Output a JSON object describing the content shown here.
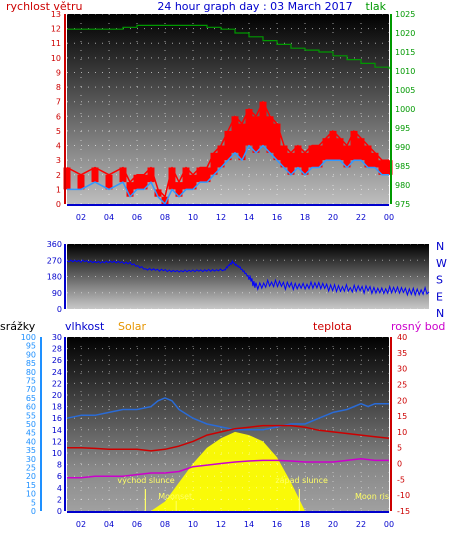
{
  "title": "24 hour graph day : 03 March 2017",
  "colors": {
    "wind": "#ff0000",
    "wind_avg": "#3399ff",
    "pressure": "#009900",
    "direction": "#0000ff",
    "humidity": "#0000ff",
    "rain": "#1e90ff",
    "solar": "#ffff00",
    "solar_label": "#e69500",
    "temperature": "#cc0000",
    "dewpoint": "#cc00cc",
    "sun_text": "#ffff66",
    "moon_text": "#ffff66"
  },
  "chart_data": [
    {
      "id": "wind_pressure",
      "type": "line",
      "left_label": "rychlost větru",
      "right_label": "tlak",
      "x_ticks": [
        "02",
        "04",
        "06",
        "08",
        "10",
        "12",
        "14",
        "16",
        "18",
        "20",
        "22",
        "00"
      ],
      "x_range": [
        1,
        24
      ],
      "y_left": {
        "min": 0,
        "max": 13,
        "ticks": [
          0,
          1,
          2,
          3,
          4,
          5,
          6,
          7,
          8,
          9,
          10,
          11,
          12,
          13
        ]
      },
      "y_right": {
        "min": 975,
        "max": 1025,
        "ticks": [
          975,
          980,
          985,
          990,
          995,
          1000,
          1005,
          1010,
          1015,
          1020,
          1025
        ]
      },
      "series": [
        {
          "key": "wind_gust",
          "axis": "left",
          "x": [
            1,
            2,
            3,
            4,
            5,
            5.5,
            6,
            6.5,
            7,
            7.5,
            8,
            8.5,
            9,
            9.5,
            10,
            10.5,
            11,
            11.5,
            12,
            12.5,
            13,
            13.5,
            14,
            14.5,
            15,
            15.5,
            16,
            16.5,
            17,
            17.5,
            18,
            18.5,
            19,
            19.5,
            20,
            20.5,
            21,
            21.5,
            22,
            22.5,
            23,
            23.5,
            24
          ],
          "values": [
            2.5,
            2,
            2.5,
            2,
            2.5,
            1.5,
            2,
            2,
            2.5,
            1,
            0.5,
            2.5,
            1.5,
            2.5,
            2,
            2.5,
            2.5,
            3.5,
            4,
            5,
            6,
            5.5,
            6.5,
            6,
            7,
            6,
            5.5,
            4,
            3.5,
            4,
            3.5,
            4,
            4,
            4.5,
            5,
            4.5,
            4,
            5,
            4.5,
            4,
            3.5,
            3,
            3
          ]
        },
        {
          "key": "wind_avg",
          "axis": "left",
          "x": [
            1,
            2,
            3,
            4,
            5,
            5.5,
            6,
            6.5,
            7,
            7.5,
            8,
            8.5,
            9,
            9.5,
            10,
            10.5,
            11,
            11.5,
            12,
            12.5,
            13,
            13.5,
            14,
            14.5,
            15,
            15.5,
            16,
            16.5,
            17,
            17.5,
            18,
            18.5,
            19,
            19.5,
            20,
            20.5,
            21,
            21.5,
            22,
            22.5,
            23,
            23.5,
            24
          ],
          "values": [
            1,
            1,
            1.5,
            1,
            1.5,
            0.5,
            1,
            1,
            1.5,
            0.5,
            0,
            1,
            0.5,
            1,
            1,
            1.5,
            1.5,
            2,
            2.5,
            3,
            3.5,
            3,
            4,
            3.5,
            4,
            3.5,
            3,
            2.5,
            2,
            2.5,
            2,
            2.5,
            2.5,
            3,
            3,
            3,
            2.5,
            3,
            3,
            2.5,
            2.5,
            2,
            2
          ]
        },
        {
          "key": "pressure",
          "axis": "right",
          "x": [
            1,
            2,
            3,
            4,
            5,
            6,
            7,
            8,
            9,
            10,
            11,
            12,
            13,
            14,
            15,
            16,
            17,
            18,
            19,
            20,
            21,
            22,
            23,
            24
          ],
          "values": [
            1021,
            1021,
            1021,
            1021,
            1021.5,
            1022,
            1022,
            1022,
            1022,
            1022,
            1021.5,
            1021,
            1020,
            1019,
            1018,
            1017,
            1016,
            1015.5,
            1015,
            1014,
            1013,
            1012,
            1011,
            1010.5
          ]
        }
      ]
    },
    {
      "id": "wind_direction",
      "type": "line",
      "x_range": [
        1,
        24
      ],
      "y": {
        "min": 0,
        "max": 360,
        "ticks": [
          0,
          90,
          180,
          270,
          360
        ]
      },
      "compass": [
        "N",
        "W",
        "S",
        "E",
        "N"
      ],
      "series": [
        {
          "key": "direction",
          "x": [
            1,
            2,
            3,
            4,
            5,
            6,
            7,
            8,
            9,
            10,
            11,
            11.5,
            12,
            12.5,
            13,
            14,
            15,
            16,
            17,
            18,
            19,
            20,
            21,
            22,
            23,
            24
          ],
          "values": [
            265,
            265,
            260,
            260,
            255,
            220,
            215,
            210,
            210,
            215,
            215,
            260,
            230,
            180,
            130,
            140,
            130,
            130,
            125,
            120,
            110,
            110,
            105,
            100,
            100,
            95
          ]
        }
      ]
    },
    {
      "id": "temperature_humidity",
      "type": "line",
      "labels": {
        "rain": "srážky",
        "humidity": "vlhkost",
        "solar": "Solar",
        "temperature": "teplota",
        "dewpoint": "rosný bod"
      },
      "x_range": [
        1,
        24
      ],
      "y_rain": {
        "min": 0,
        "max": 100,
        "ticks": [
          0,
          5,
          10,
          15,
          20,
          25,
          30,
          35,
          40,
          45,
          50,
          55,
          60,
          65,
          70,
          75,
          80,
          85,
          90,
          95,
          100
        ]
      },
      "y_humidity": {
        "min": 0,
        "max": 30,
        "ticks": [
          0,
          2,
          4,
          6,
          8,
          10,
          12,
          14,
          16,
          18,
          20,
          22,
          24,
          26,
          28,
          30
        ]
      },
      "y_temp": {
        "min": -15,
        "max": 40,
        "ticks": [
          -15,
          -10,
          -5,
          0,
          5,
          10,
          15,
          20,
          25,
          30,
          35,
          40
        ]
      },
      "sunrise_label": "východ slunce",
      "sunset_label": "západ slunce",
      "moonset_label": "Moonset",
      "moonrise_label": "Moon ris",
      "sunrise_x": 6.6,
      "sunset_x": 17.6,
      "moonset_x": 8.8,
      "moonrise_x": 23.5,
      "series": [
        {
          "key": "humidity",
          "axis": "humidity",
          "x": [
            1,
            2,
            3,
            4,
            5,
            6,
            7,
            7.5,
            8,
            8.5,
            9,
            10,
            11,
            12,
            13,
            14,
            15,
            16,
            17,
            18,
            19,
            20,
            21,
            22,
            22.5,
            23,
            24
          ],
          "values": [
            16,
            16.5,
            16.5,
            17,
            17.5,
            17.5,
            18,
            19,
            19.5,
            19,
            17.5,
            16,
            15,
            14.5,
            14,
            14,
            14,
            14.5,
            15,
            15,
            16,
            17,
            17.5,
            18.5,
            18,
            18.5,
            18.5
          ]
        },
        {
          "key": "temperature",
          "axis": "temp",
          "x": [
            1,
            2,
            3,
            4,
            5,
            6,
            7,
            8,
            9,
            10,
            11,
            12,
            13,
            14,
            15,
            16,
            17,
            18,
            19,
            20,
            21,
            22,
            23,
            24
          ],
          "values": [
            5,
            5,
            4.8,
            4.5,
            4.5,
            4.5,
            4,
            4.5,
            5.5,
            7,
            9,
            10,
            11,
            11.5,
            12,
            12,
            12,
            11.5,
            10.5,
            10,
            9.5,
            9,
            8.5,
            8
          ]
        },
        {
          "key": "dewpoint",
          "axis": "temp",
          "x": [
            1,
            2,
            3,
            4,
            5,
            6,
            7,
            8,
            9,
            10,
            11,
            12,
            13,
            14,
            15,
            16,
            17,
            18,
            19,
            20,
            21,
            22,
            23,
            24
          ],
          "values": [
            -4.5,
            -4.5,
            -4,
            -4,
            -4,
            -3.5,
            -3,
            -3,
            -2.5,
            -1,
            -0.5,
            0,
            0.5,
            0.8,
            1,
            1,
            0.8,
            0.5,
            0.5,
            0.5,
            1,
            1.5,
            1,
            1
          ]
        },
        {
          "key": "solar",
          "axis": "temp",
          "x": [
            7,
            8,
            9,
            10,
            11,
            12,
            13,
            14,
            15,
            16,
            17,
            18
          ],
          "values": [
            -15,
            -12,
            -6,
            0,
            5,
            8,
            10,
            9,
            7,
            2,
            -6,
            -15
          ]
        }
      ]
    }
  ]
}
